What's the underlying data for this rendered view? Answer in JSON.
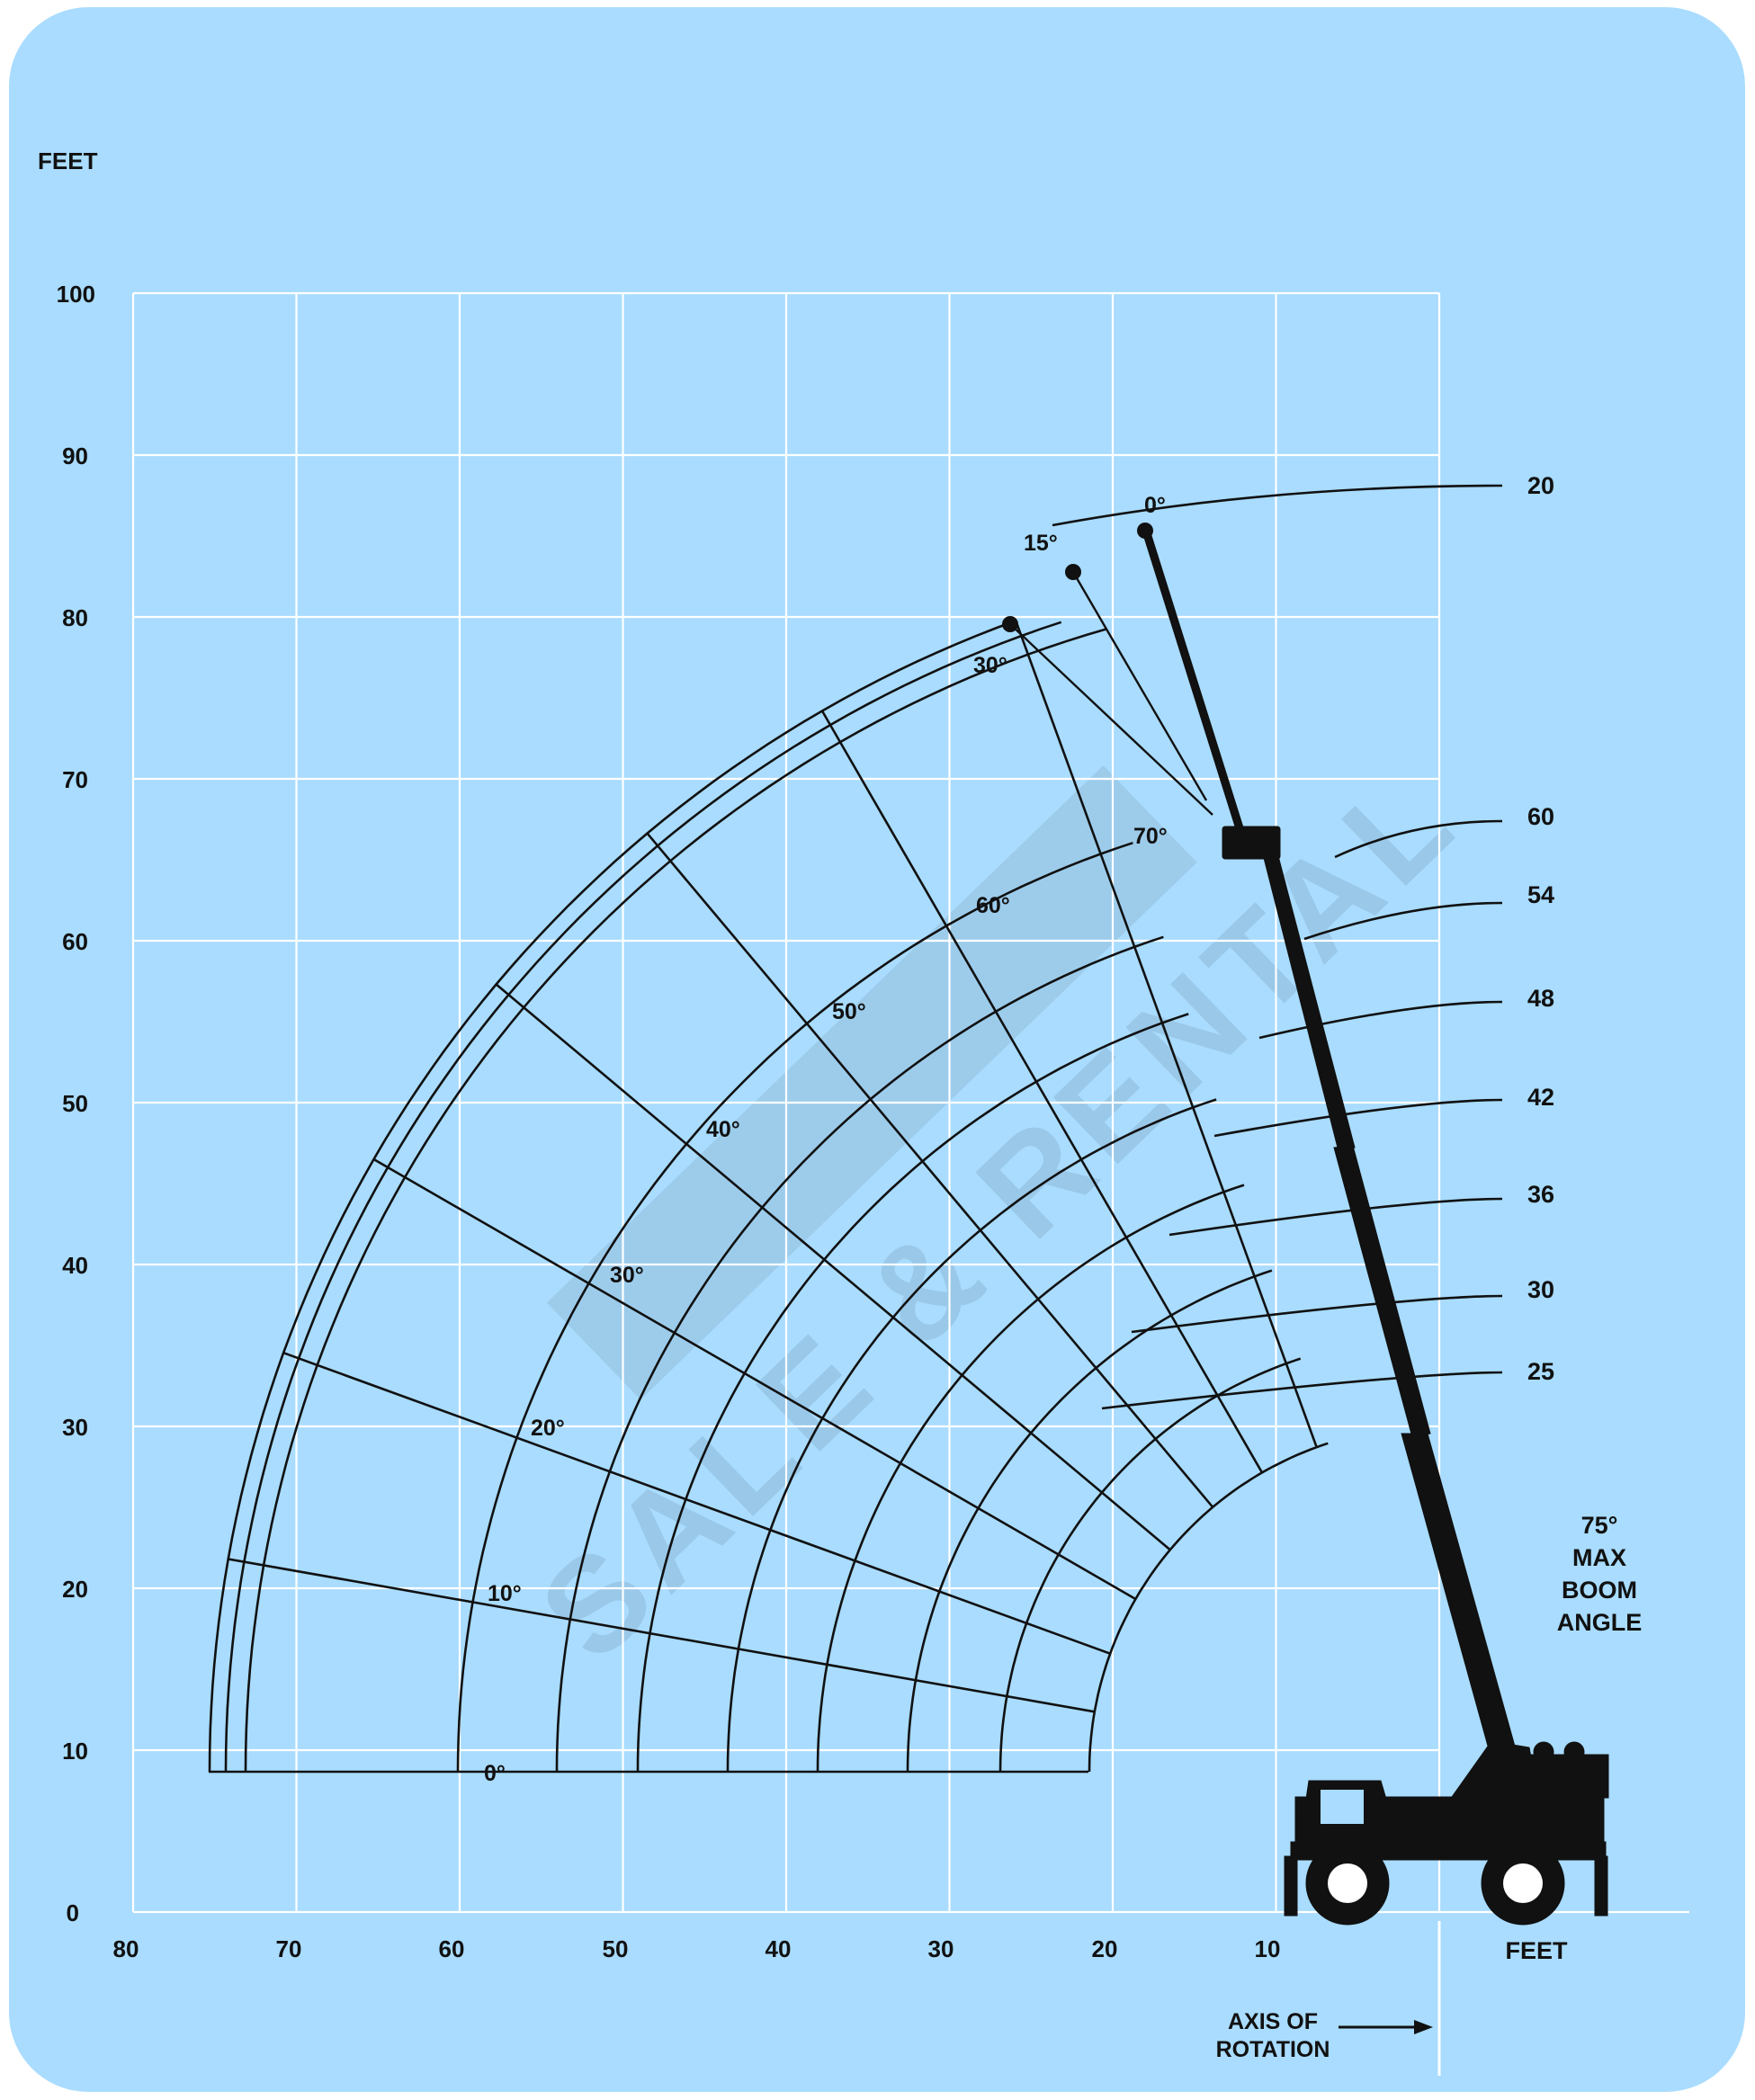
{
  "colors": {
    "background": "#a9dcff",
    "grid": "#ffffff",
    "ink": "#111111"
  },
  "axes": {
    "y_unit": "FEET",
    "x_unit": "FEET",
    "y_ticks": [
      "0",
      "10",
      "20",
      "30",
      "40",
      "50",
      "60",
      "70",
      "80",
      "90",
      "100"
    ],
    "x_ticks": [
      "80",
      "70",
      "60",
      "50",
      "40",
      "30",
      "20",
      "10"
    ],
    "x_range": [
      0,
      80
    ],
    "y_range": [
      0,
      100
    ],
    "axis_of_rotation_line1": "AXIS OF",
    "axis_of_rotation_line2": "ROTATION"
  },
  "boom_lengths": [
    "20",
    "60",
    "54",
    "48",
    "42",
    "36",
    "30",
    "25"
  ],
  "boom_angles": [
    "0°",
    "10°",
    "20°",
    "30°",
    "40°",
    "50°",
    "60°",
    "70°"
  ],
  "jib_angles": [
    "0°",
    "15°",
    "30°"
  ],
  "max_angle": {
    "line1": "75°",
    "line2": "MAX",
    "line3": "BOOM",
    "line4": "ANGLE"
  },
  "watermark": "SALE & RENTAL"
}
